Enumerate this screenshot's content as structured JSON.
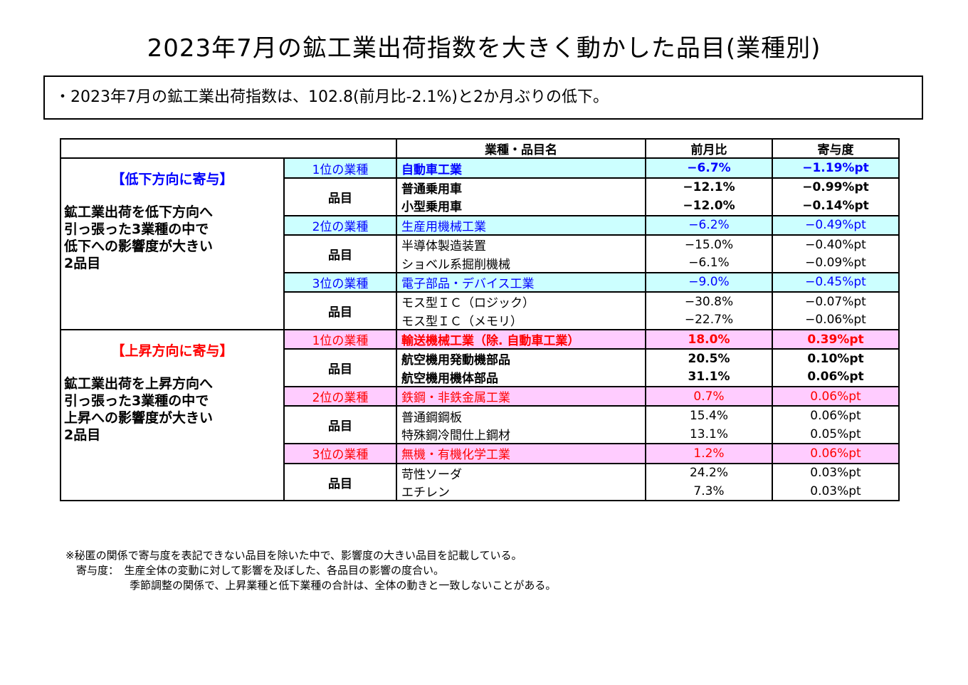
{
  "title": "2023年7月の鉱工業出荷指数を大きく動かした品目(業種別)",
  "summary": "・2023年7月の鉱工業出荷指数は、102.8(前月比-2.1%)と2か月ぶりの低下。",
  "table": {
    "headers": {
      "name": "業種・品目名",
      "mom": "前月比",
      "contrib": "寄与度"
    },
    "hinmoku_label": "品目",
    "groups": [
      {
        "tag": "【低下方向に寄与】",
        "text": "鉱工業出荷を低下方向へ引っ張った3業種の中で低下への影響度が大きい2品目",
        "text_lines": [
          "鉱工業出荷を低下方向へ",
          "引っ張った3業種の中で",
          "低下への影響度が大きい",
          "2品目"
        ],
        "color": "#0000ff",
        "ranks": [
          {
            "rank": "1位の業種",
            "industry": "自動車工業",
            "mom": "−6.7%",
            "contrib": "−1.19%pt",
            "items": [
              {
                "name": "普通乗用車",
                "mom": "−12.1%",
                "contrib": "−0.99%pt"
              },
              {
                "name": "小型乗用車",
                "mom": "−12.0%",
                "contrib": "−0.14%pt"
              }
            ]
          },
          {
            "rank": "2位の業種",
            "industry": "生産用機械工業",
            "mom": "−6.2%",
            "contrib": "−0.49%pt",
            "items": [
              {
                "name": "半導体製造装置",
                "mom": "−15.0%",
                "contrib": "−0.40%pt"
              },
              {
                "name": "ショベル系掘削機械",
                "mom": "−6.1%",
                "contrib": "−0.09%pt"
              }
            ]
          },
          {
            "rank": "3位の業種",
            "industry": "電子部品・デバイス工業",
            "mom": "−9.0%",
            "contrib": "−0.45%pt",
            "items": [
              {
                "name": "モス型ＩＣ（ロジック）",
                "mom": "−30.8%",
                "contrib": "−0.07%pt"
              },
              {
                "name": "モス型ＩＣ（メモリ）",
                "mom": "−22.7%",
                "contrib": "−0.06%pt"
              }
            ]
          }
        ]
      },
      {
        "tag": "【上昇方向に寄与】",
        "text": "鉱工業出荷を上昇方向へ引っ張った3業種の中で上昇への影響度が大きい2品目",
        "text_lines": [
          "鉱工業出荷を上昇方向へ",
          "引っ張った3業種の中で",
          "上昇への影響度が大きい",
          "2品目"
        ],
        "color": "#ff0000",
        "ranks": [
          {
            "rank": "1位の業種",
            "industry": "輸送機械工業（除. 自動車工業）",
            "mom": "18.0%",
            "contrib": "0.39%pt",
            "items": [
              {
                "name": "航空機用発動機部品",
                "mom": "20.5%",
                "contrib": "0.10%pt"
              },
              {
                "name": "航空機用機体部品",
                "mom": "31.1%",
                "contrib": "0.06%pt"
              }
            ]
          },
          {
            "rank": "2位の業種",
            "industry": "鉄鋼・非鉄金属工業",
            "mom": "0.7%",
            "contrib": "0.06%pt",
            "items": [
              {
                "name": "普通鋼鋼板",
                "mom": "15.4%",
                "contrib": "0.06%pt"
              },
              {
                "name": "特殊鋼冷間仕上鋼材",
                "mom": "13.1%",
                "contrib": "0.05%pt"
              }
            ]
          },
          {
            "rank": "3位の業種",
            "industry": "無機・有機化学工業",
            "mom": "1.2%",
            "contrib": "0.06%pt",
            "items": [
              {
                "name": "苛性ソーダ",
                "mom": "24.2%",
                "contrib": "0.03%pt"
              },
              {
                "name": "エチレン",
                "mom": "7.3%",
                "contrib": "0.03%pt"
              }
            ]
          }
        ]
      }
    ]
  },
  "notes": [
    "※秘匿の関係で寄与度を表記できない品目を除いた中で、影響度の大きい品目を記載している。",
    "　寄与度：　生産全体の変動に対して影響を及ぼした、各品目の影響の度合い。",
    "　　　　　　季節調整の関係で、上昇業種と低下業種の合計は、全体の動きと一致しないことがある。"
  ],
  "colors": {
    "cyan_fill": "#ccffff",
    "pink_fill": "#ffccff",
    "blue_text": "#0000ff",
    "red_text": "#ff0000"
  }
}
